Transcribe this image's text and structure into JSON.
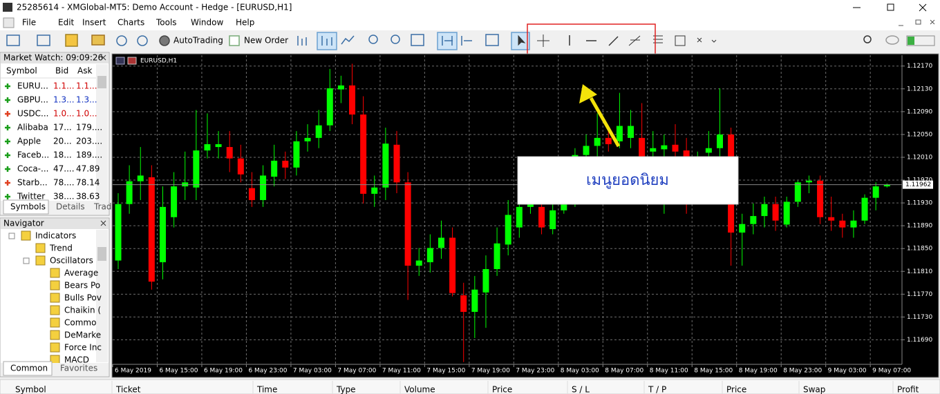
{
  "window": {
    "title": "25285614 - XMGlobal-MT5: Demo Account - Hedge - [EURUSD,H1]"
  },
  "menu": [
    "File",
    "Edit",
    "Insert",
    "Charts",
    "Tools",
    "Window",
    "Help"
  ],
  "toolbar": {
    "buttons": [
      "AutoTrading",
      "New Order"
    ]
  },
  "market_watch": {
    "title": "Market Watch: 09:09:26",
    "columns": [
      "Symbol",
      "Bid",
      "Ask"
    ],
    "rows": [
      {
        "cells": [
          "EURU...",
          "1.1...",
          "1.1..."
        ],
        "color": "#d00000",
        "icon_color": "#1a9e1a"
      },
      {
        "cells": [
          "GBPU...",
          "1.3...",
          "1.3..."
        ],
        "color": "#1030c0",
        "icon_color": "#1a9e1a"
      },
      {
        "cells": [
          "USDC...",
          "1.0...",
          "1.0..."
        ],
        "color": "#d00000",
        "icon_color": "#e04020"
      },
      {
        "cells": [
          "Alibaba",
          "17...",
          "179...."
        ],
        "color": "#000000",
        "icon_color": "#1a9e1a"
      },
      {
        "cells": [
          "Apple",
          "20...",
          "203...."
        ],
        "color": "#000000",
        "icon_color": "#1a9e1a"
      },
      {
        "cells": [
          "Faceb...",
          "18...",
          "189...."
        ],
        "color": "#000000",
        "icon_color": "#1a9e1a"
      },
      {
        "cells": [
          "Coca-...",
          "47....",
          "47.89"
        ],
        "color": "#000000",
        "icon_color": "#1a9e1a"
      },
      {
        "cells": [
          "Starb...",
          "78....",
          "78.14"
        ],
        "color": "#000000",
        "icon_color": "#e04020"
      },
      {
        "cells": [
          "Twitter",
          "38....",
          "38.63"
        ],
        "color": "#000000",
        "icon_color": "#1a9e1a"
      }
    ],
    "tabs": [
      "Symbols",
      "Details",
      "Trad"
    ]
  },
  "navigator": {
    "title": "Navigator",
    "tree": [
      {
        "label": "Indicators",
        "children": [
          {
            "label": "Trend"
          },
          {
            "label": "Oscillators",
            "children": [
              {
                "label": "Average"
              },
              {
                "label": "Bears Po"
              },
              {
                "label": "Bulls Pov"
              },
              {
                "label": "Chaikin ("
              },
              {
                "label": "Commo"
              },
              {
                "label": "DeMarke"
              },
              {
                "label": "Force Inc"
              },
              {
                "label": "MACD"
              }
            ]
          }
        ]
      }
    ],
    "tabs": [
      "Common",
      "Favorites"
    ]
  },
  "chart_data": {
    "type": "candlestick",
    "title": "EURUSD,H1",
    "categories": [
      "6 May 2019",
      null,
      null,
      null,
      "6 May 15:00",
      null,
      null,
      null,
      "6 May 19:00",
      null,
      null,
      null,
      "6 May 23:00",
      null,
      null,
      null,
      "7 May 03:00",
      null,
      null,
      null,
      "7 May 07:00",
      null,
      null,
      null,
      "7 May 11:00",
      null,
      null,
      null,
      "7 May 15:00",
      null,
      null,
      null,
      "7 May 19:00",
      null,
      null,
      null,
      "7 May 23:00",
      null,
      null,
      null,
      "8 May 03:00",
      null,
      null,
      null,
      "8 May 07:00",
      null,
      null,
      null,
      "8 May 11:00",
      null,
      null,
      null,
      "8 May 15:00",
      null,
      null,
      null,
      "8 May 19:00",
      null,
      null,
      null,
      "8 May 23:00",
      null,
      null,
      null,
      "9 May 03:00",
      null,
      null,
      null,
      "9 May 07:00",
      null
    ],
    "open": [
      1.11829,
      1.11928,
      1.11968,
      1.11975,
      1.11826,
      1.11905,
      1.11959,
      1.11957,
      1.12022,
      1.12028,
      1.12028,
      1.12008,
      1.11956,
      1.11935,
      1.11976,
      1.12004,
      1.11992,
      1.12038,
      1.12044,
      1.12066,
      1.12129,
      1.12136,
      1.12085,
      1.11946,
      1.11957,
      1.12032,
      1.11966,
      1.1182,
      1.11826,
      1.11851,
      1.11869,
      1.11768,
      1.11739,
      1.11773,
      1.11814,
      1.11857,
      1.11887,
      1.11923,
      1.11923,
      1.11884,
      1.11917,
      1.11927,
      1.12014,
      1.1203,
      1.12044,
      1.12038,
      1.12044,
      1.12044,
      1.1202,
      1.12024,
      1.12032,
      1.12022,
      1.12002,
      1.12018,
      1.12026,
      1.1205,
      1.11878,
      1.11893,
      1.11907,
      1.11928,
      1.11892,
      1.11932,
      1.11966,
      1.11969,
      1.11905,
      1.11899,
      1.11887,
      1.11899,
      1.11939,
      1.11959
    ],
    "high": [
      1.11947,
      1.11996,
      1.12028,
      1.11996,
      1.11959,
      1.11984,
      1.1202,
      1.12093,
      1.12087,
      1.12056,
      1.12056,
      1.12032,
      1.11984,
      1.11996,
      1.12032,
      1.1202,
      1.12056,
      1.12068,
      1.12093,
      1.12165,
      1.12153,
      1.12174,
      1.12117,
      1.11978,
      1.12062,
      1.12056,
      1.11984,
      1.11851,
      1.11875,
      1.11899,
      1.11887,
      1.1179,
      1.11802,
      1.11838,
      1.11887,
      1.11935,
      1.11947,
      1.11941,
      1.11935,
      1.11935,
      1.11941,
      1.12026,
      1.1205,
      1.12087,
      1.12056,
      1.12123,
      1.12093,
      1.12105,
      1.12056,
      1.1205,
      1.12068,
      1.12044,
      1.1202,
      1.12056,
      1.12131,
      1.12062,
      1.11911,
      1.11929,
      1.11941,
      1.11941,
      1.11941,
      1.11969,
      1.11978,
      1.11978,
      1.11941,
      1.11911,
      1.11917,
      1.11945,
      1.11966,
      1.11964
    ],
    "low": [
      1.11814,
      1.11911,
      1.11935,
      1.11778,
      1.11796,
      1.11887,
      1.11935,
      1.11935,
      1.12008,
      1.12008,
      1.11984,
      1.11966,
      1.11923,
      1.11923,
      1.11959,
      1.11972,
      1.11978,
      1.1202,
      1.12026,
      1.12056,
      1.12105,
      1.12068,
      1.11929,
      1.11923,
      1.11935,
      1.11947,
      1.1176,
      1.11802,
      1.11808,
      1.11832,
      1.11766,
      1.11651,
      1.11693,
      1.11711,
      1.11802,
      1.11838,
      1.11869,
      1.11911,
      1.11875,
      1.11875,
      1.11911,
      1.11923,
      1.11996,
      1.12008,
      1.1202,
      1.12026,
      1.12026,
      1.11996,
      1.12002,
      1.11911,
      1.12008,
      1.11911,
      1.1199,
      1.12002,
      1.12008,
      1.1182,
      1.1182,
      1.11875,
      1.11887,
      1.11881,
      1.11887,
      1.11923,
      1.11947,
      1.11893,
      1.11881,
      1.11869,
      1.11869,
      1.11893,
      1.11917,
      1.11957
    ],
    "close": [
      1.11928,
      1.11968,
      1.11978,
      1.11792,
      1.11923,
      1.11959,
      1.11966,
      1.12022,
      1.12033,
      1.12033,
      1.12008,
      1.1198,
      1.11935,
      1.11978,
      1.12004,
      1.11992,
      1.12038,
      1.12044,
      1.12066,
      1.12131,
      1.12136,
      1.12085,
      1.11946,
      1.11957,
      1.12034,
      1.11966,
      1.1182,
      1.11829,
      1.11851,
      1.11869,
      1.11772,
      1.11739,
      1.11778,
      1.11814,
      1.11859,
      1.11909,
      1.11923,
      1.11928,
      1.11887,
      1.11917,
      1.11927,
      1.12014,
      1.1203,
      1.12044,
      1.12033,
      1.12065,
      1.12065,
      1.1201,
      1.12026,
      1.12031,
      1.1202,
      1.1201,
      1.1201,
      1.12026,
      1.1205,
      1.11878,
      1.11893,
      1.11907,
      1.11928,
      1.11899,
      1.11932,
      1.11966,
      1.11969,
      1.11905,
      1.11899,
      1.11887,
      1.11899,
      1.11939,
      1.11959,
      1.11962
    ],
    "ylim": [
      1.11647,
      1.12189
    ],
    "yticks": [
      {
        "value": 1.1217,
        "label": "1.12170"
      },
      {
        "value": 1.1213,
        "label": "1.12130"
      },
      {
        "value": 1.1209,
        "label": "1.12090"
      },
      {
        "value": 1.1205,
        "label": "1.12050"
      },
      {
        "value": 1.1201,
        "label": "1.12010"
      },
      {
        "value": 1.1197,
        "label": "1.11970"
      },
      {
        "value": 1.1193,
        "label": "1.11930"
      },
      {
        "value": 1.1189,
        "label": "1.11890"
      },
      {
        "value": 1.1185,
        "label": "1.11850"
      },
      {
        "value": 1.1181,
        "label": "1.11810"
      },
      {
        "value": 1.1177,
        "label": "1.11770"
      },
      {
        "value": 1.1173,
        "label": "1.11730"
      },
      {
        "value": 1.1169,
        "label": "1.11690"
      }
    ],
    "last_price": 1.11962,
    "grid": true,
    "bull_color": "#00ff00",
    "bear_color": "#ff0000"
  },
  "callout": {
    "text": "เมนูยอดนิยม"
  },
  "terminal": {
    "columns": [
      "Symbol",
      "Ticket",
      "Time",
      "Type",
      "Volume",
      "Price",
      "S / L",
      "T / P",
      "Price",
      "Swap",
      "Profit"
    ]
  }
}
